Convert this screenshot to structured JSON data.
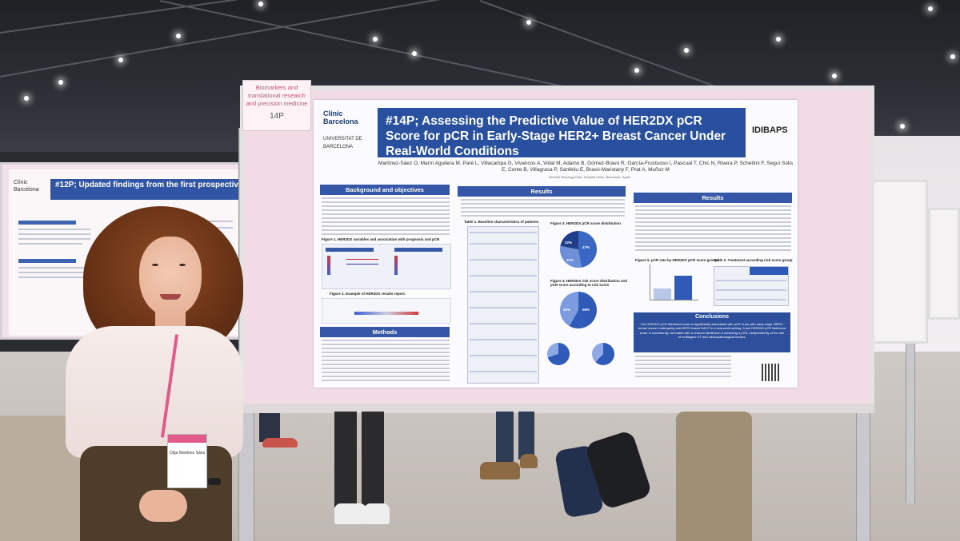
{
  "stand_label": {
    "category": "Biomarkers and translational research and precision medicine",
    "number": "14P"
  },
  "main_poster": {
    "logo_left_top": "Clínic Barcelona",
    "logo_left_bottom": "UNIVERSITAT DE BARCELONA",
    "logo_right": "IDIBAPS",
    "title": "#14P; Assessing the Predictive Value of HER2DX pCR Score for pCR in Early-Stage HER2+ Breast Cancer Under Real-World Conditions",
    "authors": "Martínez-Sáez O, Marín Aguilera M, Paré L, Villacampa G, Vivancos A, Vidal M, Adamo B, Gómez-Bravo R, García-Fructuoso I, Pascual T, Chic N, Rivera P, Schettini F, Seguí Solis E, Conte B, Villagrasa P, Sanfeliu E, Brasó-Maristany F, Prat A, Muñoz M",
    "affiliation": "Medical Oncology Dept. Hospital Clínic, Barcelona, Spain",
    "sections": {
      "background": "Background and objectives",
      "results": "Results",
      "methods": "Methods",
      "conclusions": "Conclusions"
    },
    "figures": {
      "fig1": "Figure 1. HER2DX variables and association with prognosis and pCR",
      "fig2": "Figure 2. Example of HER2DX results report.",
      "fig3": "Figure 3. HER2DX pCR score distribution",
      "fig4": "Figure 4. HER2DX risk score distribution and pCR score according to risk score",
      "fig5": "Figure 5. pCR rate by HER2DX pCR score groups",
      "table1": "Table 1. Baseline characteristics of patients",
      "table2": "Table 2. Treatment according risk score group"
    },
    "pie_labels": {
      "p1": "47%",
      "p2": "31%",
      "p3": "22%",
      "p4": "42%",
      "p5": "58%"
    },
    "conclusion_text": "The HER2DX pCR likelihood score is significantly associated with pCR in pts with early-stage HER2+ breast cancer undergoing anti-HER2-based NACT in a real-world setting. A low HER2DX pCR likelihood score is consistently correlated with a reduced likelihood of achieving a pCR, independently of the use of multiagent CT and clinicopathological factors."
  },
  "left_poster": {
    "title": "#12P; Updated findings from the first prospective HER2DX clinical decision impact study on early-stage HER2-positive breast cancer",
    "logo": "Clínic Barcelona"
  },
  "badge": {
    "name": "Olga Martínez Sáez"
  }
}
